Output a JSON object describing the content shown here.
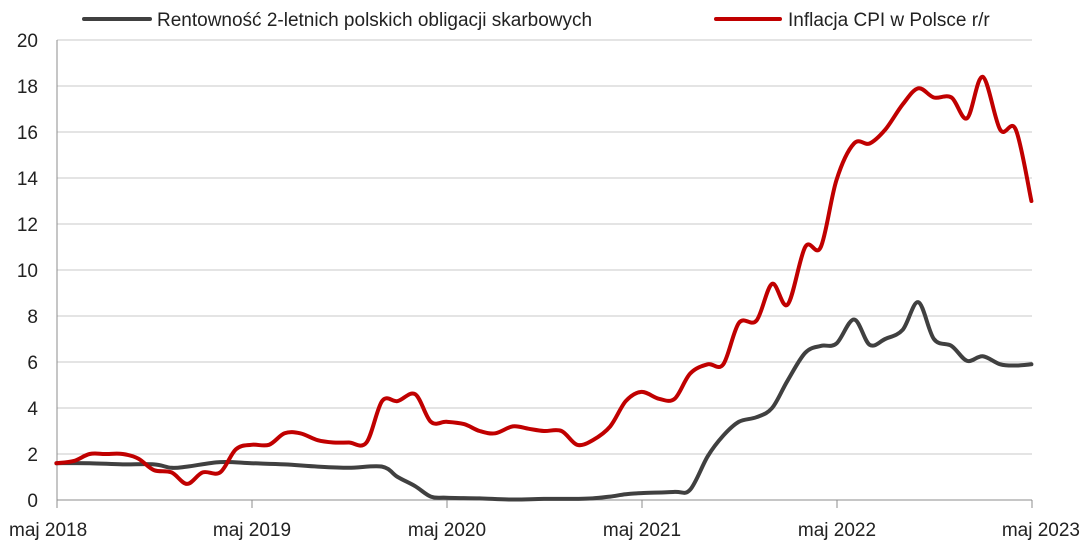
{
  "chart_data": {
    "type": "line",
    "title": "",
    "xlabel": "",
    "ylabel": "",
    "ylim": [
      0,
      20
    ],
    "yticks": [
      0,
      2,
      4,
      6,
      8,
      10,
      12,
      14,
      16,
      18,
      20
    ],
    "xticks": [
      {
        "label": "maj 2018",
        "x": 2018.333
      },
      {
        "label": "maj 2019",
        "x": 2019.333
      },
      {
        "label": "maj 2020",
        "x": 2020.333
      },
      {
        "label": "maj 2021",
        "x": 2021.333
      },
      {
        "label": "maj 2022",
        "x": 2022.333
      },
      {
        "label": "maj 2023",
        "x": 2023.333
      }
    ],
    "xlim": [
      2018.333,
      2023.333
    ],
    "grid": "horizontal",
    "legend": "top",
    "series": [
      {
        "name": "Rentowność 2-letnich polskich obligacji skarbowych",
        "color": "#404040",
        "points": [
          [
            2018.33,
            1.6
          ],
          [
            2018.5,
            1.6
          ],
          [
            2018.67,
            1.55
          ],
          [
            2018.83,
            1.55
          ],
          [
            2018.92,
            1.4
          ],
          [
            2019.0,
            1.45
          ],
          [
            2019.17,
            1.65
          ],
          [
            2019.33,
            1.6
          ],
          [
            2019.5,
            1.55
          ],
          [
            2019.67,
            1.45
          ],
          [
            2019.83,
            1.4
          ],
          [
            2020.0,
            1.45
          ],
          [
            2020.08,
            1.0
          ],
          [
            2020.17,
            0.6
          ],
          [
            2020.25,
            0.15
          ],
          [
            2020.33,
            0.1
          ],
          [
            2020.5,
            0.07
          ],
          [
            2020.67,
            0.02
          ],
          [
            2020.83,
            0.05
          ],
          [
            2021.0,
            0.05
          ],
          [
            2021.08,
            0.07
          ],
          [
            2021.17,
            0.15
          ],
          [
            2021.25,
            0.25
          ],
          [
            2021.33,
            0.3
          ],
          [
            2021.5,
            0.35
          ],
          [
            2021.58,
            0.45
          ],
          [
            2021.67,
            1.9
          ],
          [
            2021.75,
            2.8
          ],
          [
            2021.83,
            3.4
          ],
          [
            2021.92,
            3.6
          ],
          [
            2022.0,
            4.0
          ],
          [
            2022.08,
            5.2
          ],
          [
            2022.17,
            6.4
          ],
          [
            2022.25,
            6.7
          ],
          [
            2022.33,
            6.8
          ],
          [
            2022.42,
            7.85
          ],
          [
            2022.5,
            6.75
          ],
          [
            2022.58,
            7.0
          ],
          [
            2022.67,
            7.4
          ],
          [
            2022.75,
            8.6
          ],
          [
            2022.83,
            7.0
          ],
          [
            2022.92,
            6.7
          ],
          [
            2023.0,
            6.05
          ],
          [
            2023.08,
            6.25
          ],
          [
            2023.17,
            5.9
          ],
          [
            2023.25,
            5.85
          ],
          [
            2023.33,
            5.9
          ]
        ]
      },
      {
        "name": "Inflacja CPI w Polsce r/r",
        "color": "#c00000",
        "points": [
          [
            2018.33,
            1.6
          ],
          [
            2018.42,
            1.7
          ],
          [
            2018.5,
            2.0
          ],
          [
            2018.58,
            2.0
          ],
          [
            2018.67,
            2.0
          ],
          [
            2018.75,
            1.8
          ],
          [
            2018.83,
            1.3
          ],
          [
            2018.92,
            1.2
          ],
          [
            2019.0,
            0.7
          ],
          [
            2019.08,
            1.2
          ],
          [
            2019.17,
            1.2
          ],
          [
            2019.25,
            2.2
          ],
          [
            2019.33,
            2.4
          ],
          [
            2019.42,
            2.4
          ],
          [
            2019.5,
            2.9
          ],
          [
            2019.58,
            2.9
          ],
          [
            2019.67,
            2.6
          ],
          [
            2019.75,
            2.5
          ],
          [
            2019.83,
            2.5
          ],
          [
            2019.92,
            2.5
          ],
          [
            2020.0,
            4.3
          ],
          [
            2020.08,
            4.3
          ],
          [
            2020.17,
            4.6
          ],
          [
            2020.25,
            3.4
          ],
          [
            2020.33,
            3.4
          ],
          [
            2020.42,
            3.3
          ],
          [
            2020.5,
            3.0
          ],
          [
            2020.58,
            2.9
          ],
          [
            2020.67,
            3.2
          ],
          [
            2020.75,
            3.1
          ],
          [
            2020.83,
            3.0
          ],
          [
            2020.92,
            3.0
          ],
          [
            2021.0,
            2.4
          ],
          [
            2021.08,
            2.6
          ],
          [
            2021.17,
            3.2
          ],
          [
            2021.25,
            4.3
          ],
          [
            2021.33,
            4.7
          ],
          [
            2021.42,
            4.4
          ],
          [
            2021.5,
            4.4
          ],
          [
            2021.58,
            5.5
          ],
          [
            2021.67,
            5.9
          ],
          [
            2021.75,
            5.9
          ],
          [
            2021.83,
            7.7
          ],
          [
            2021.92,
            7.8
          ],
          [
            2022.0,
            9.4
          ],
          [
            2022.08,
            8.5
          ],
          [
            2022.17,
            11.0
          ],
          [
            2022.25,
            11.0
          ],
          [
            2022.33,
            13.9
          ],
          [
            2022.42,
            15.5
          ],
          [
            2022.5,
            15.5
          ],
          [
            2022.58,
            16.1
          ],
          [
            2022.67,
            17.2
          ],
          [
            2022.75,
            17.9
          ],
          [
            2022.83,
            17.5
          ],
          [
            2022.92,
            17.5
          ],
          [
            2023.0,
            16.6
          ],
          [
            2023.08,
            18.4
          ],
          [
            2023.17,
            16.1
          ],
          [
            2023.25,
            16.1
          ],
          [
            2023.33,
            13.0
          ]
        ]
      }
    ]
  }
}
